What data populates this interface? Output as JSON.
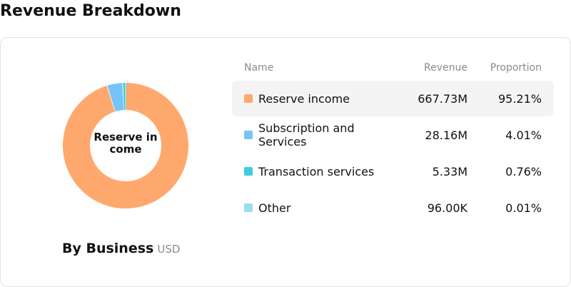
{
  "page": {
    "title": "Revenue Breakdown"
  },
  "donut": {
    "center_label": "Reserve in come"
  },
  "subtitle": {
    "title": "By Business",
    "unit": "USD"
  },
  "table": {
    "headers": {
      "name": "Name",
      "revenue": "Revenue",
      "proportion": "Proportion"
    },
    "rows": [
      {
        "name": "Reserve income",
        "revenue": "667.73M",
        "proportion": "95.21%",
        "color": "#FFA86E",
        "highlighted": true
      },
      {
        "name": "Subscription and Services",
        "revenue": "28.16M",
        "proportion": "4.01%",
        "color": "#76C4F7",
        "highlighted": false
      },
      {
        "name": "Transaction services",
        "revenue": "5.33M",
        "proportion": "0.76%",
        "color": "#3CCDE0",
        "highlighted": false
      },
      {
        "name": "Other",
        "revenue": "96.00K",
        "proportion": "0.01%",
        "color": "#9ADCF2",
        "highlighted": false
      }
    ]
  },
  "chart_data": {
    "type": "pie",
    "categories": [
      "Reserve income",
      "Subscription and Services",
      "Transaction services",
      "Other"
    ],
    "values": [
      667.73,
      28.16,
      5.33,
      0.096
    ],
    "units": "M USD",
    "percentages": [
      95.21,
      4.01,
      0.76,
      0.01
    ],
    "colors": [
      "#FFA86E",
      "#76C4F7",
      "#3CCDE0",
      "#9ADCF2"
    ],
    "center_label": "Reserve in come"
  }
}
